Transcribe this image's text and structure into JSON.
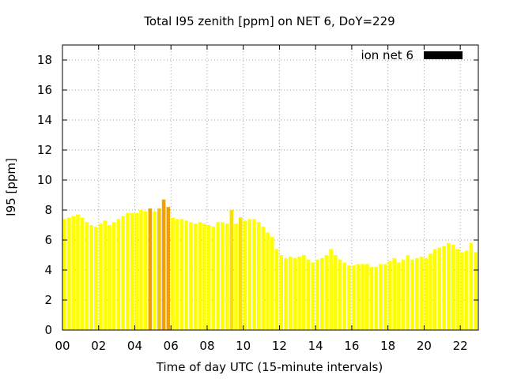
{
  "chart_data": {
    "type": "bar",
    "title": "Total I95 zenith [ppm] on NET 6, DoY=229",
    "xlabel": "Time of day UTC (15-minute intervals)",
    "ylabel": "I95 [ppm]",
    "xlim": [
      0,
      23
    ],
    "ylim": [
      0,
      19
    ],
    "xticks": [
      "00",
      "02",
      "04",
      "06",
      "08",
      "10",
      "12",
      "14",
      "16",
      "18",
      "20",
      "22"
    ],
    "yticks": [
      "0",
      "2",
      "4",
      "6",
      "8",
      "10",
      "12",
      "14",
      "16",
      "18"
    ],
    "grid": true,
    "legend": {
      "position": "top-right",
      "label": "ion net 6",
      "color": "#000000"
    },
    "bar_width_hours": 0.2,
    "x": [
      0.0,
      0.25,
      0.5,
      0.75,
      1.0,
      1.25,
      1.5,
      1.75,
      2.0,
      2.25,
      2.5,
      2.75,
      3.0,
      3.25,
      3.5,
      3.75,
      4.0,
      4.25,
      4.5,
      4.75,
      5.0,
      5.25,
      5.5,
      5.75,
      6.0,
      6.25,
      6.5,
      6.75,
      7.0,
      7.25,
      7.5,
      7.75,
      8.0,
      8.25,
      8.5,
      8.75,
      9.0,
      9.25,
      9.5,
      9.75,
      10.0,
      10.25,
      10.5,
      10.75,
      11.0,
      11.25,
      11.5,
      11.75,
      12.0,
      12.25,
      12.5,
      12.75,
      13.0,
      13.25,
      13.5,
      13.75,
      14.0,
      14.25,
      14.5,
      14.75,
      15.0,
      15.25,
      15.5,
      15.75,
      16.0,
      16.25,
      16.5,
      16.75,
      17.0,
      17.25,
      17.5,
      17.75,
      18.0,
      18.25,
      18.5,
      18.75,
      19.0,
      19.25,
      19.5,
      19.75,
      20.0,
      20.25,
      20.5,
      20.75,
      21.0,
      21.25,
      21.5,
      21.75,
      22.0,
      22.25,
      22.5,
      22.75
    ],
    "values": [
      7.4,
      7.5,
      7.6,
      7.7,
      7.5,
      7.2,
      7.0,
      6.9,
      7.1,
      7.3,
      7.0,
      7.2,
      7.4,
      7.6,
      7.8,
      7.8,
      7.8,
      8.0,
      7.9,
      8.1,
      7.9,
      8.1,
      8.7,
      8.2,
      7.5,
      7.4,
      7.4,
      7.3,
      7.2,
      7.1,
      7.2,
      7.1,
      7.0,
      6.9,
      7.2,
      7.2,
      7.1,
      8.0,
      7.1,
      7.5,
      7.3,
      7.4,
      7.4,
      7.2,
      6.9,
      6.5,
      6.2,
      5.4,
      5.0,
      4.8,
      4.9,
      4.8,
      4.9,
      5.0,
      4.7,
      4.5,
      4.7,
      4.8,
      5.0,
      5.4,
      5.0,
      4.7,
      4.5,
      4.3,
      4.3,
      4.4,
      4.4,
      4.4,
      4.2,
      4.2,
      4.4,
      4.4,
      4.6,
      4.8,
      4.5,
      4.7,
      5.0,
      4.7,
      4.8,
      4.9,
      4.8,
      5.1,
      5.4,
      5.5,
      5.6,
      5.8,
      5.7,
      5.4,
      5.2,
      5.3,
      5.8,
      5.2
    ],
    "colors": [
      "#ffff00",
      "#ffff00",
      "#ffff00",
      "#ffff00",
      "#ffff00",
      "#ffff00",
      "#ffff00",
      "#ffff00",
      "#ffff00",
      "#ffff00",
      "#ffff00",
      "#ffff00",
      "#ffff00",
      "#ffff00",
      "#ffff00",
      "#ffff00",
      "#ffff00",
      "#ffff00",
      "#ffff00",
      "#f0a000",
      "#ffff00",
      "#f8c000",
      "#f0a000",
      "#f0a000",
      "#ffff00",
      "#ffff00",
      "#ffff00",
      "#ffff00",
      "#ffff00",
      "#ffff00",
      "#ffff00",
      "#ffff00",
      "#ffff00",
      "#ffff00",
      "#ffff00",
      "#ffff00",
      "#ffff00",
      "#f8e000",
      "#ffff00",
      "#f8e000",
      "#ffff00",
      "#ffff00",
      "#ffff00",
      "#ffff00",
      "#ffff00",
      "#ffff00",
      "#ffff00",
      "#ffff00",
      "#ffff00",
      "#ffff00",
      "#ffff00",
      "#ffff00",
      "#ffff00",
      "#ffff00",
      "#ffff00",
      "#ffff00",
      "#ffff00",
      "#ffff00",
      "#ffff00",
      "#ffff00",
      "#ffff00",
      "#ffff00",
      "#ffff00",
      "#ffff00",
      "#ffff00",
      "#ffff00",
      "#ffff00",
      "#ffff00",
      "#ffff00",
      "#ffff00",
      "#ffff00",
      "#ffff00",
      "#ffff00",
      "#ffff00",
      "#ffff00",
      "#ffff00",
      "#ffff00",
      "#ffff00",
      "#ffff00",
      "#ffff00",
      "#ffff00",
      "#ffff00",
      "#ffff00",
      "#ffff00",
      "#ffff00",
      "#ffff00",
      "#ffff00",
      "#ffff00",
      "#ffff00",
      "#ffff00",
      "#ffff00",
      "#ffff00"
    ]
  }
}
